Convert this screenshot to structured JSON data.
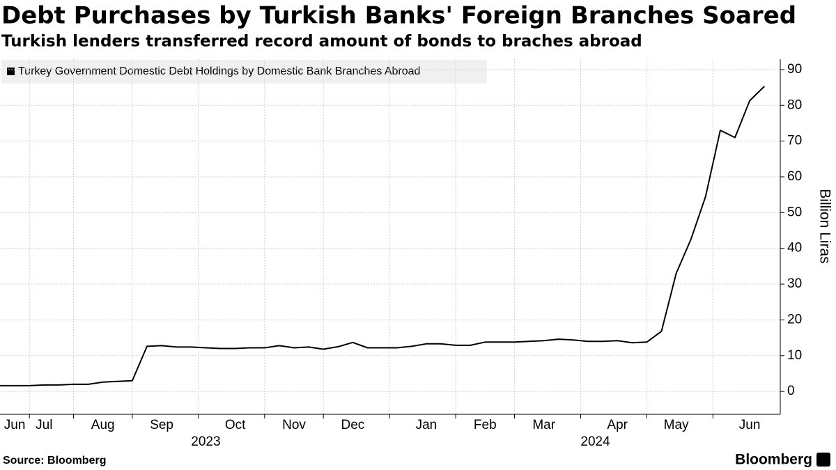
{
  "chart_data": {
    "type": "line",
    "title": "Debt Purchases by Turkish Banks' Foreign Branches Soared",
    "subtitle": "Turkish lenders transferred record amount of bonds to braches abroad",
    "y_axis_label": "Billion Liras",
    "source": "Source: Bloomberg",
    "brand": "Bloomberg",
    "categories": [
      null,
      "Jun",
      null,
      "Jul",
      null,
      null,
      null,
      "Aug",
      null,
      null,
      null,
      "Sep",
      null,
      null,
      null,
      null,
      "Oct",
      null,
      null,
      null,
      "Nov",
      null,
      null,
      null,
      "Dec",
      null,
      null,
      null,
      null,
      "Jan",
      null,
      null,
      null,
      "Feb",
      null,
      null,
      null,
      "Mar",
      null,
      null,
      null,
      null,
      "Apr",
      null,
      null,
      null,
      "May",
      null,
      null,
      null,
      null,
      "Jun",
      null
    ],
    "category_groups": [
      {
        "label": "2023",
        "count": 29
      },
      {
        "label": "2024",
        "count": 24
      }
    ],
    "series": [
      {
        "name": "Turkey Government Domestic Debt Holdings by Domestic Bank Branches Abroad",
        "color": "#000000",
        "values": [
          1.6,
          1.6,
          1.6,
          1.8,
          1.8,
          2.0,
          2.0,
          2.6,
          2.8,
          3.0,
          12.6,
          12.8,
          12.4,
          12.4,
          12.2,
          12.0,
          12.0,
          12.2,
          12.2,
          12.8,
          12.2,
          12.4,
          11.8,
          12.5,
          13.7,
          12.2,
          12.2,
          12.2,
          12.6,
          13.3,
          13.3,
          12.9,
          12.9,
          13.8,
          13.8,
          13.8,
          14.0,
          14.2,
          14.6,
          14.4,
          14.0,
          14.0,
          14.2,
          13.6,
          13.8,
          16.8,
          33,
          42.5,
          54.5,
          73,
          71,
          81.3,
          85.3
        ]
      }
    ],
    "ylim": [
      -6.4,
      92.9
    ],
    "yticks": [
      0,
      10,
      20,
      30,
      40,
      50,
      60,
      70,
      80,
      90
    ],
    "grid": true
  }
}
